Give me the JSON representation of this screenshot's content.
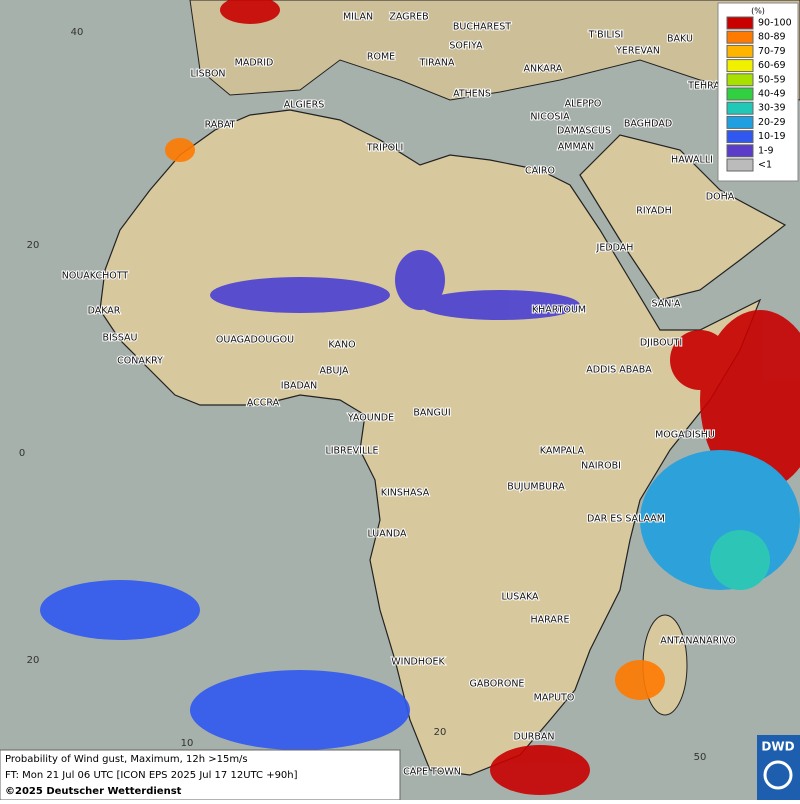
{
  "legend": {
    "title": "(%)",
    "items": [
      {
        "label": "90-100",
        "color": "#c80000"
      },
      {
        "label": "80-89",
        "color": "#ff7a00"
      },
      {
        "label": "70-79",
        "color": "#ffb400"
      },
      {
        "label": "60-69",
        "color": "#f0f000"
      },
      {
        "label": "50-59",
        "color": "#a8e000"
      },
      {
        "label": "40-49",
        "color": "#30d040"
      },
      {
        "label": "30-39",
        "color": "#20c8b8"
      },
      {
        "label": "20-29",
        "color": "#20a0e0"
      },
      {
        "label": "10-19",
        "color": "#3058f0"
      },
      {
        "label": "1-9",
        "color": "#5a3cc8"
      },
      {
        "label": "<1",
        "color": "#bbbbbb"
      }
    ]
  },
  "cities": [
    "MILAN",
    "ZAGREB",
    "BUCHAREST",
    "MADRID",
    "ROME",
    "SOFIYA",
    "TIRANA",
    "ANKARA",
    "T'BILISI",
    "YEREVAN",
    "BAKU",
    "TEHRA",
    "LISBON",
    "ALGIERS",
    "ATHENS",
    "ALEPPO",
    "NICOSIA",
    "BAGHDAD",
    "RABAT",
    "TRIPOLI",
    "DAMASCUS",
    "AMMAN",
    "HAWALLI",
    "CAIRO",
    "DOHA",
    "RIYADH",
    "JEDDAH",
    "NOUAKCHOTT",
    "DAKAR",
    "BISSAU",
    "CONAKRY",
    "SAN'A",
    "KHARTOUM",
    "OUAGADOUGOU",
    "KANO",
    "DJIBOUTI",
    "ABUJA",
    "ADDIS ABABA",
    "IBADAN",
    "ACCRA",
    "YAOUNDE",
    "BANGUI",
    "MOGADISHU",
    "LIBREVILLE",
    "KAMPALA",
    "NAIROBI",
    "BUJUMBURA",
    "KINSHASA",
    "DAR ES SALAAM",
    "LUANDA",
    "LUSAKA",
    "HARARE",
    "ANTANANARIVO",
    "WINDHOEK",
    "GABORONE",
    "MAPUTO",
    "DURBAN",
    "CAPE TOWN"
  ],
  "grid_labels": [
    "40",
    "20",
    "0",
    "20",
    "10",
    "20",
    "50"
  ],
  "info": [
    "Probability of Wind gust, Maximum, 12h >15m/s",
    "FT: Mon 21 Jul 06 UTC [ICON EPS 2025 Jul 17 12UTC +90h]",
    "©2025 Deutscher Wetterdienst"
  ],
  "logo": "DWD"
}
